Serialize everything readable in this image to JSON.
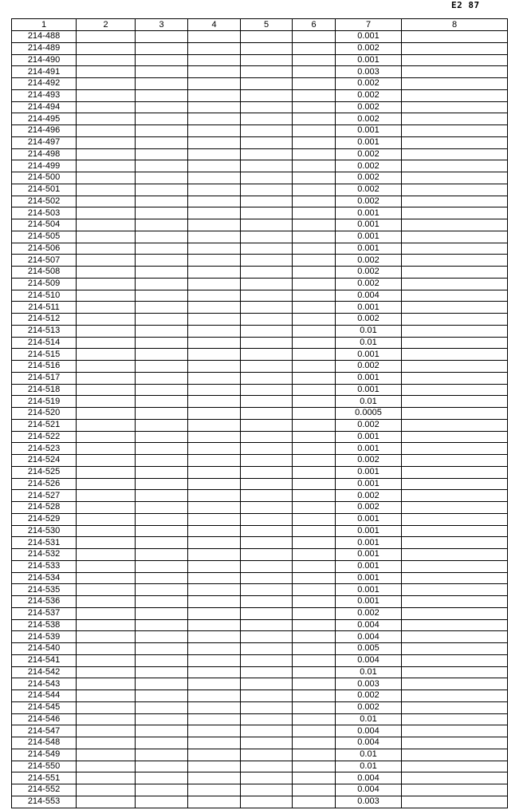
{
  "page_number": "E2 87",
  "columns": [
    "1",
    "2",
    "3",
    "4",
    "5",
    "6",
    "7",
    "8"
  ],
  "rows": [
    [
      "214-488",
      "0.001"
    ],
    [
      "214-489",
      "0.002"
    ],
    [
      "214-490",
      "0.001"
    ],
    [
      "214-491",
      "0.003"
    ],
    [
      "214-492",
      "0.002"
    ],
    [
      "214-493",
      "0.002"
    ],
    [
      "214-494",
      "0.002"
    ],
    [
      "214-495",
      "0.002"
    ],
    [
      "214-496",
      "0.001"
    ],
    [
      "214-497",
      "0.001"
    ],
    [
      "214-498",
      "0.002"
    ],
    [
      "214-499",
      "0.002"
    ],
    [
      "214-500",
      "0.002"
    ],
    [
      "214-501",
      "0.002"
    ],
    [
      "214-502",
      "0.002"
    ],
    [
      "214-503",
      "0.001"
    ],
    [
      "214-504",
      "0.001"
    ],
    [
      "214-505",
      "0.001"
    ],
    [
      "214-506",
      "0.001"
    ],
    [
      "214-507",
      "0.002"
    ],
    [
      "214-508",
      "0.002"
    ],
    [
      "214-509",
      "0.002"
    ],
    [
      "214-510",
      "0.004"
    ],
    [
      "214-511",
      "0.001"
    ],
    [
      "214-512",
      "0.002"
    ],
    [
      "214-513",
      "0.01"
    ],
    [
      "214-514",
      "0.01"
    ],
    [
      "214-515",
      "0.001"
    ],
    [
      "214-516",
      "0.002"
    ],
    [
      "214-517",
      "0.001"
    ],
    [
      "214-518",
      "0.001"
    ],
    [
      "214-519",
      "0.01"
    ],
    [
      "214-520",
      "0.0005"
    ],
    [
      "214-521",
      "0.002"
    ],
    [
      "214-522",
      "0.001"
    ],
    [
      "214-523",
      "0.001"
    ],
    [
      "214-524",
      "0.002"
    ],
    [
      "214-525",
      "0.001"
    ],
    [
      "214-526",
      "0.001"
    ],
    [
      "214-527",
      "0.002"
    ],
    [
      "214-528",
      "0.002"
    ],
    [
      "214-529",
      "0.001"
    ],
    [
      "214-530",
      "0.001"
    ],
    [
      "214-531",
      "0.001"
    ],
    [
      "214-532",
      "0.001"
    ],
    [
      "214-533",
      "0.001"
    ],
    [
      "214-534",
      "0.001"
    ],
    [
      "214-535",
      "0.001"
    ],
    [
      "214-536",
      "0.001"
    ],
    [
      "214-537",
      "0.002"
    ],
    [
      "214-538",
      "0.004"
    ],
    [
      "214-539",
      "0.004"
    ],
    [
      "214-540",
      "0.005"
    ],
    [
      "214-541",
      "0.004"
    ],
    [
      "214-542",
      "0.01"
    ],
    [
      "214-543",
      "0.003"
    ],
    [
      "214-544",
      "0.002"
    ],
    [
      "214-545",
      "0.002"
    ],
    [
      "214-546",
      "0.01"
    ],
    [
      "214-547",
      "0.004"
    ],
    [
      "214-548",
      "0.004"
    ],
    [
      "214-549",
      "0.01"
    ],
    [
      "214-550",
      "0.01"
    ],
    [
      "214-551",
      "0.004"
    ],
    [
      "214-552",
      "0.004"
    ],
    [
      "214-553",
      "0.003"
    ]
  ]
}
